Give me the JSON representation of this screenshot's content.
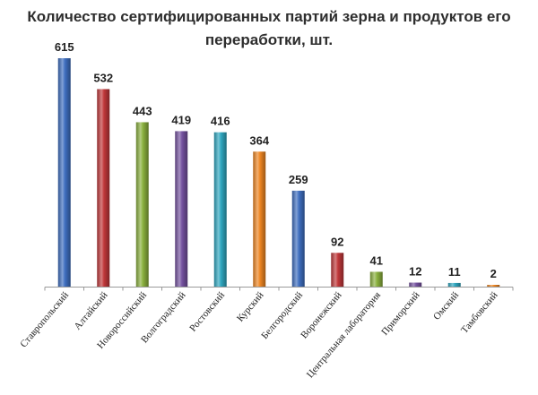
{
  "chart_data": {
    "type": "bar",
    "title_lines": [
      "Количество сертифицированных партий зерна и продуктов его",
      "переработки, шт."
    ],
    "categories": [
      "Ставропольский",
      "Алтайский",
      "Новороссийский",
      "Волгоградский",
      "Ростовский",
      "Курский",
      "Белгородский",
      "Воронежский",
      "Центральная лаборатория",
      "Приморский",
      "Омский",
      "Тамбовский"
    ],
    "values": [
      615,
      532,
      443,
      419,
      416,
      364,
      259,
      92,
      41,
      12,
      11,
      2
    ],
    "colors": [
      "#3f6fc0",
      "#c0383a",
      "#8ab03e",
      "#7552a0",
      "#2fa7c0",
      "#ee8622",
      "#3f6fc0",
      "#c0383a",
      "#8ab03e",
      "#7552a0",
      "#2fa7c0",
      "#ee8622"
    ],
    "ylim": [
      0,
      615
    ],
    "grid": false,
    "legend": "none",
    "data_labels": true
  }
}
